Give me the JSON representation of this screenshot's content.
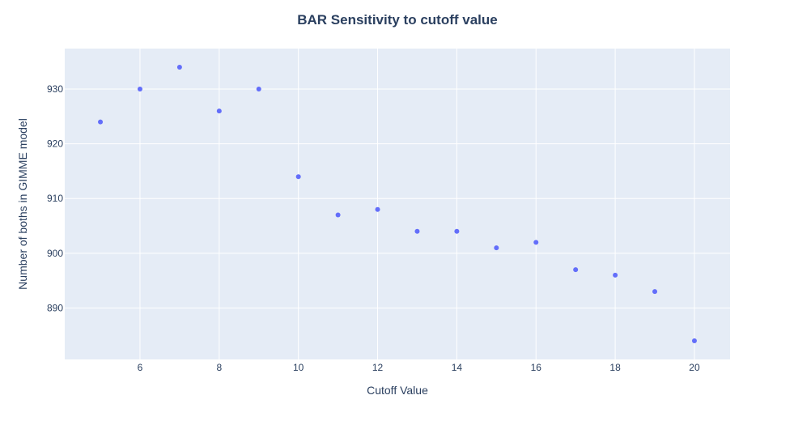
{
  "chart_data": {
    "type": "scatter",
    "title": "BAR Sensitivity to cutoff value",
    "xlabel": "Cutoff Value",
    "ylabel": "Number of boths in GIMME model",
    "x": [
      5,
      6,
      7,
      8,
      9,
      10,
      11,
      12,
      13,
      14,
      15,
      16,
      17,
      18,
      19,
      20
    ],
    "y": [
      924,
      930,
      934,
      926,
      930,
      914,
      907,
      908,
      904,
      904,
      901,
      902,
      897,
      896,
      893,
      884
    ],
    "xlim": [
      4.1,
      20.9
    ],
    "ylim": [
      880.6,
      937.4
    ],
    "xticks": [
      6,
      8,
      10,
      12,
      14,
      16,
      18,
      20
    ],
    "yticks": [
      890,
      900,
      910,
      920,
      930
    ],
    "grid": true,
    "colors": {
      "plot_background": "#e5ecf6",
      "grid": "#ffffff",
      "marker": "#636efa",
      "text": "#2a3f5f"
    }
  }
}
